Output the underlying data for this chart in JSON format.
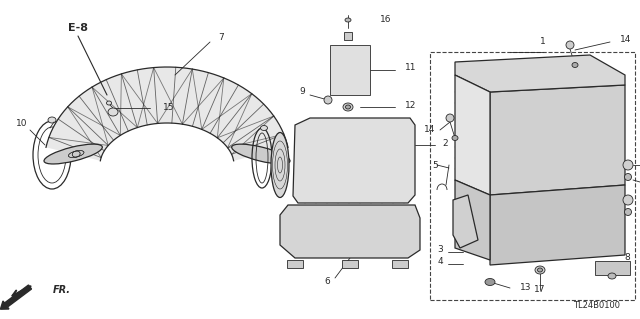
{
  "background_color": "#ffffff",
  "line_color": "#2a2a2a",
  "diagram_code": "TL24B0100",
  "figsize": [
    6.4,
    3.19
  ],
  "dpi": 100
}
